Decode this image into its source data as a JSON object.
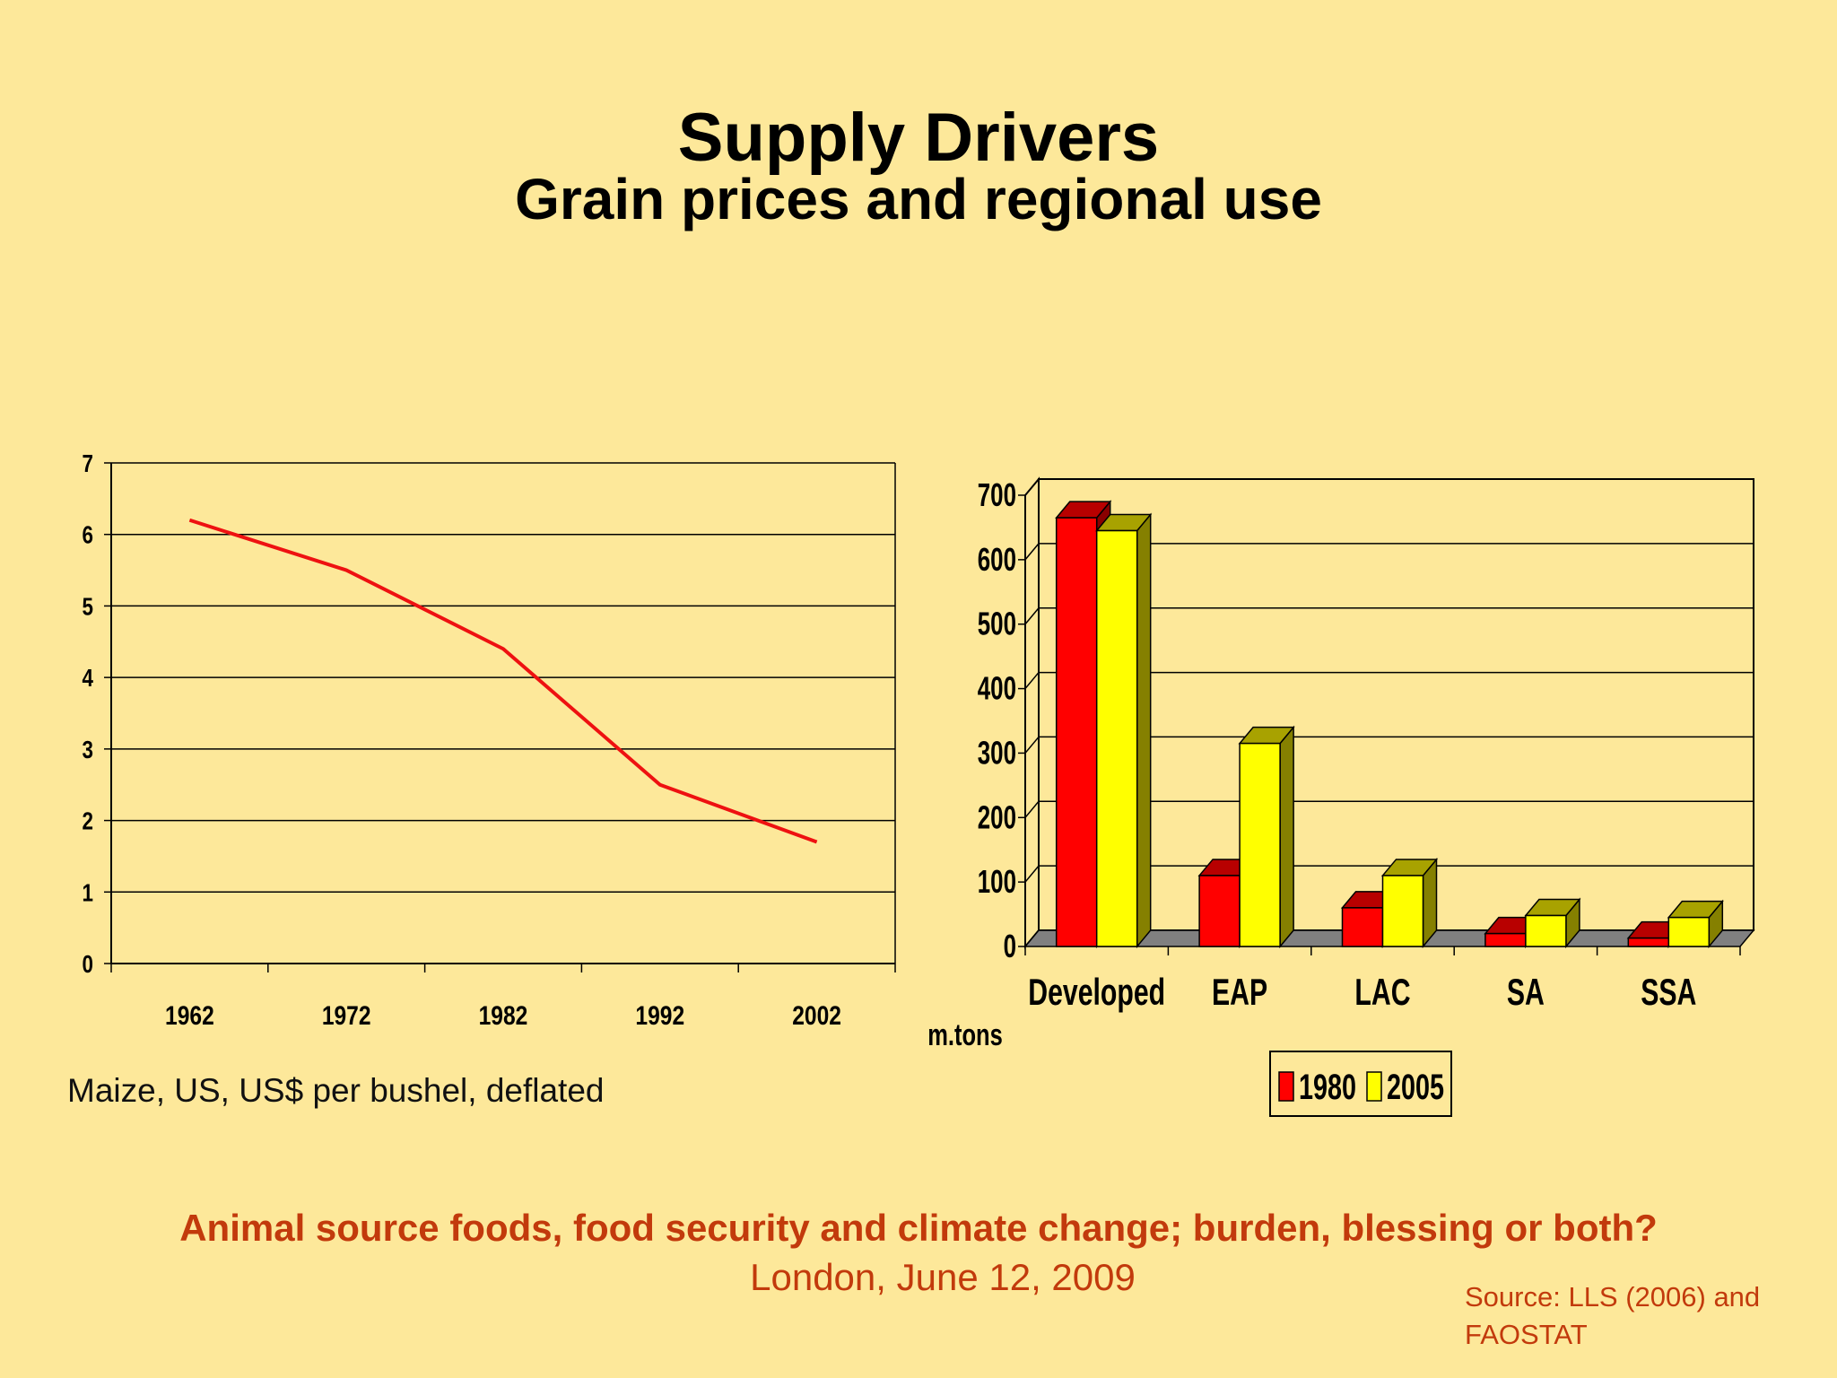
{
  "slide": {
    "title": "Supply Drivers",
    "subtitle": "Grain prices and regional use",
    "footer_title": "Animal source foods, food security and climate change; burden, blessing or both?",
    "footer_date": "London, June 12, 2009",
    "source_line1": "Source:  LLS (2006) and",
    "source_line2": "FAOSTAT"
  },
  "colors": {
    "background": "#fde89a",
    "line": "#ee1111",
    "bar_1980": "#ff0000",
    "bar_2005": "#ffff00",
    "floor": "#808080",
    "footer_text": "#c23a0c"
  },
  "chart_data": [
    {
      "type": "line",
      "title": "",
      "caption": "Maize, US, US$ per bushel, deflated",
      "xlabel": "",
      "ylabel": "",
      "categories": [
        "1962",
        "1972",
        "1982",
        "1992",
        "2002"
      ],
      "values": [
        6.2,
        5.5,
        4.4,
        2.5,
        1.7
      ],
      "ylim": [
        0,
        7
      ],
      "yticks": [
        0,
        1,
        2,
        3,
        4,
        5,
        6,
        7
      ],
      "grid": true
    },
    {
      "type": "bar",
      "title": "",
      "xlabel": "",
      "ylabel": "m.tons",
      "categories": [
        "Developed",
        "EAP",
        "LAC",
        "SA",
        "SSA"
      ],
      "series": [
        {
          "name": "1980",
          "values": [
            665,
            110,
            60,
            20,
            13
          ]
        },
        {
          "name": "2005",
          "values": [
            645,
            315,
            110,
            48,
            45
          ]
        }
      ],
      "ylim": [
        0,
        700
      ],
      "yticks": [
        0,
        100,
        200,
        300,
        400,
        500,
        600,
        700
      ],
      "grid": true,
      "legend_position": "bottom"
    }
  ]
}
